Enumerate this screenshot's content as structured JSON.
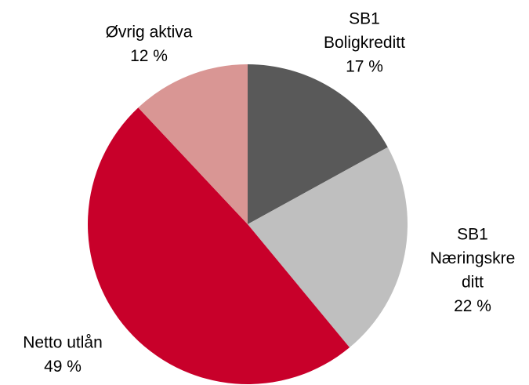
{
  "chart_data": {
    "type": "pie",
    "categories": [
      [
        "SB1",
        "Boligkreditt"
      ],
      [
        "SB1",
        "Næringskre",
        "ditt"
      ],
      [
        "Netto utlån"
      ],
      [
        "Øvrig aktiva"
      ]
    ],
    "values": [
      17,
      22,
      49,
      12
    ],
    "value_labels": [
      "17 %",
      "22 %",
      "49 %",
      "12 %"
    ],
    "colors": [
      "#595959",
      "#bfbfbf",
      "#c8002a",
      "#d99694"
    ]
  }
}
